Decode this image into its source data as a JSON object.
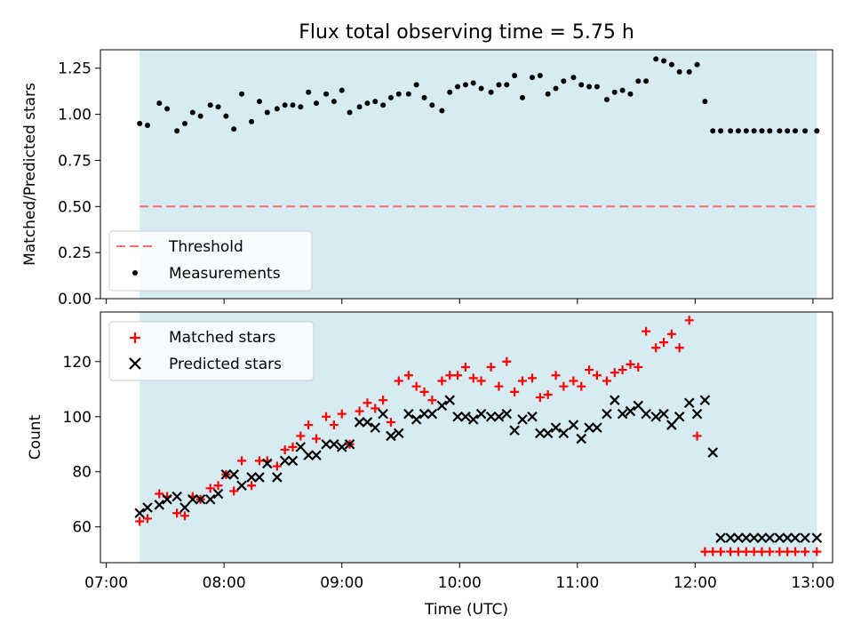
{
  "chart_data": [
    {
      "type": "scatter",
      "title": "Flux total observing time = 5.75 h",
      "ylabel": "Matched/Predicted stars",
      "xlabel": "",
      "xlim": [
        "07:00",
        "13:00"
      ],
      "ylim": [
        0,
        1.35
      ],
      "x_ticks": [
        "07:00",
        "08:00",
        "09:00",
        "10:00",
        "11:00",
        "12:00",
        "13:00"
      ],
      "y_ticks": [
        "0.00",
        "0.25",
        "0.50",
        "0.75",
        "1.00",
        "1.25"
      ],
      "observing_window": [
        "07:17",
        "13:02"
      ],
      "threshold": 0.5,
      "legend": {
        "placement": "lower-left",
        "entries": [
          "Threshold",
          "Measurements"
        ]
      },
      "series": [
        {
          "name": "Measurements",
          "x": [
            "07:17",
            "07:21",
            "07:27",
            "07:31",
            "07:36",
            "07:40",
            "07:44",
            "07:48",
            "07:53",
            "07:57",
            "08:01",
            "08:05",
            "08:09",
            "08:14",
            "08:18",
            "08:22",
            "08:27",
            "08:31",
            "08:35",
            "08:39",
            "08:43",
            "08:47",
            "08:52",
            "08:56",
            "09:00",
            "09:04",
            "09:09",
            "09:13",
            "09:17",
            "09:21",
            "09:25",
            "09:29",
            "09:34",
            "09:38",
            "09:42",
            "09:46",
            "09:51",
            "09:55",
            "09:59",
            "10:03",
            "10:07",
            "10:11",
            "10:16",
            "10:20",
            "10:24",
            "10:28",
            "10:32",
            "10:37",
            "10:41",
            "10:45",
            "10:49",
            "10:53",
            "10:58",
            "11:02",
            "11:06",
            "11:10",
            "11:15",
            "11:19",
            "11:23",
            "11:27",
            "11:31",
            "11:35",
            "11:40",
            "11:44",
            "11:48",
            "11:52",
            "11:57",
            "12:01",
            "12:05",
            "12:09",
            "12:13",
            "12:18",
            "12:22",
            "12:26",
            "12:30",
            "12:34",
            "12:38",
            "12:43",
            "12:47",
            "12:51",
            "12:56",
            "13:02"
          ],
          "y": [
            0.95,
            0.94,
            1.06,
            1.03,
            0.91,
            0.95,
            1.01,
            0.99,
            1.05,
            1.04,
            0.99,
            0.92,
            1.11,
            0.96,
            1.07,
            1.01,
            1.03,
            1.05,
            1.05,
            1.04,
            1.12,
            1.06,
            1.11,
            1.07,
            1.13,
            1.01,
            1.04,
            1.06,
            1.07,
            1.05,
            1.09,
            1.11,
            1.11,
            1.16,
            1.09,
            1.05,
            1.02,
            1.12,
            1.15,
            1.16,
            1.17,
            1.14,
            1.12,
            1.16,
            1.16,
            1.21,
            1.09,
            1.2,
            1.21,
            1.11,
            1.14,
            1.18,
            1.2,
            1.16,
            1.15,
            1.15,
            1.08,
            1.12,
            1.13,
            1.11,
            1.18,
            1.18,
            1.3,
            1.29,
            1.27,
            1.23,
            1.23,
            1.27,
            1.07,
            0.91,
            0.91,
            0.91,
            0.91,
            0.91,
            0.91,
            0.91,
            0.91,
            0.91,
            0.91,
            0.91,
            0.91,
            0.91
          ],
          "color": "#000000",
          "marker": "dot"
        }
      ]
    },
    {
      "type": "scatter",
      "title": "",
      "ylabel": "Count",
      "xlabel": "Time (UTC)",
      "xlim": [
        "07:00",
        "13:00"
      ],
      "ylim": [
        47,
        138
      ],
      "x_ticks": [
        "07:00",
        "08:00",
        "09:00",
        "10:00",
        "11:00",
        "12:00",
        "13:00"
      ],
      "y_ticks": [
        "60",
        "80",
        "100",
        "120"
      ],
      "observing_window": [
        "07:17",
        "13:02"
      ],
      "legend": {
        "placement": "upper-left",
        "entries": [
          "Matched stars",
          "Predicted stars"
        ]
      },
      "series": [
        {
          "name": "Matched stars",
          "color": "#ff0000",
          "marker": "plus",
          "x": [
            "07:17",
            "07:21",
            "07:27",
            "07:31",
            "07:36",
            "07:40",
            "07:44",
            "07:48",
            "07:53",
            "07:57",
            "08:01",
            "08:05",
            "08:09",
            "08:14",
            "08:18",
            "08:22",
            "08:27",
            "08:31",
            "08:35",
            "08:39",
            "08:43",
            "08:47",
            "08:52",
            "08:56",
            "09:00",
            "09:04",
            "09:09",
            "09:13",
            "09:17",
            "09:21",
            "09:25",
            "09:29",
            "09:34",
            "09:38",
            "09:42",
            "09:46",
            "09:51",
            "09:55",
            "09:59",
            "10:03",
            "10:07",
            "10:11",
            "10:16",
            "10:20",
            "10:24",
            "10:28",
            "10:32",
            "10:37",
            "10:41",
            "10:45",
            "10:49",
            "10:53",
            "10:58",
            "11:02",
            "11:06",
            "11:10",
            "11:15",
            "11:19",
            "11:23",
            "11:27",
            "11:31",
            "11:35",
            "11:40",
            "11:44",
            "11:48",
            "11:52",
            "11:57",
            "12:01",
            "12:05",
            "12:09",
            "12:13",
            "12:18",
            "12:22",
            "12:26",
            "12:30",
            "12:34",
            "12:38",
            "12:43",
            "12:47",
            "12:51",
            "12:56",
            "13:02"
          ],
          "y": [
            62,
            63,
            72,
            71,
            65,
            64,
            71,
            70,
            74,
            75,
            79,
            73,
            84,
            75,
            84,
            84,
            82,
            88,
            89,
            93,
            97,
            92,
            100,
            97,
            101,
            90,
            102,
            105,
            103,
            106,
            98,
            113,
            115,
            111,
            109,
            106,
            113,
            115,
            115,
            118,
            114,
            113,
            118,
            111,
            120,
            109,
            113,
            114,
            107,
            108,
            115,
            111,
            113,
            111,
            117,
            115,
            113,
            116,
            117,
            119,
            118,
            131,
            125,
            127,
            130,
            125,
            135,
            93,
            51,
            51,
            51,
            51,
            51,
            51,
            51,
            51,
            51,
            51,
            51,
            51,
            51,
            51
          ]
        },
        {
          "name": "Predicted stars",
          "color": "#000000",
          "marker": "x",
          "x": [
            "07:17",
            "07:21",
            "07:27",
            "07:31",
            "07:36",
            "07:40",
            "07:44",
            "07:48",
            "07:53",
            "07:57",
            "08:01",
            "08:05",
            "08:09",
            "08:14",
            "08:18",
            "08:22",
            "08:27",
            "08:31",
            "08:35",
            "08:39",
            "08:43",
            "08:47",
            "08:52",
            "08:56",
            "09:00",
            "09:04",
            "09:09",
            "09:13",
            "09:17",
            "09:21",
            "09:25",
            "09:29",
            "09:34",
            "09:38",
            "09:42",
            "09:46",
            "09:51",
            "09:55",
            "09:59",
            "10:03",
            "10:07",
            "10:11",
            "10:16",
            "10:20",
            "10:24",
            "10:28",
            "10:32",
            "10:37",
            "10:41",
            "10:45",
            "10:49",
            "10:53",
            "10:58",
            "11:02",
            "11:06",
            "11:10",
            "11:15",
            "11:19",
            "11:23",
            "11:27",
            "11:31",
            "11:35",
            "11:40",
            "11:44",
            "11:48",
            "11:52",
            "11:57",
            "12:01",
            "12:05",
            "12:09",
            "12:13",
            "12:18",
            "12:22",
            "12:26",
            "12:30",
            "12:34",
            "12:38",
            "12:43",
            "12:47",
            "12:51",
            "12:56",
            "13:02"
          ],
          "y": [
            65,
            67,
            68,
            70,
            71,
            67,
            70,
            70,
            70,
            72,
            79,
            79,
            75,
            78,
            78,
            83,
            78,
            84,
            84,
            89,
            86,
            86,
            90,
            90,
            89,
            90,
            98,
            98,
            96,
            101,
            93,
            94,
            101,
            99,
            101,
            101,
            104,
            106,
            100,
            100,
            99,
            101,
            100,
            100,
            101,
            95,
            99,
            100,
            94,
            94,
            96,
            94,
            97,
            92,
            96,
            96,
            101,
            106,
            101,
            102,
            104,
            101,
            100,
            101,
            97,
            100,
            105,
            101,
            106,
            87,
            56,
            56,
            56,
            56,
            56,
            56,
            56,
            56,
            56,
            56,
            56,
            56
          ]
        }
      ]
    }
  ]
}
